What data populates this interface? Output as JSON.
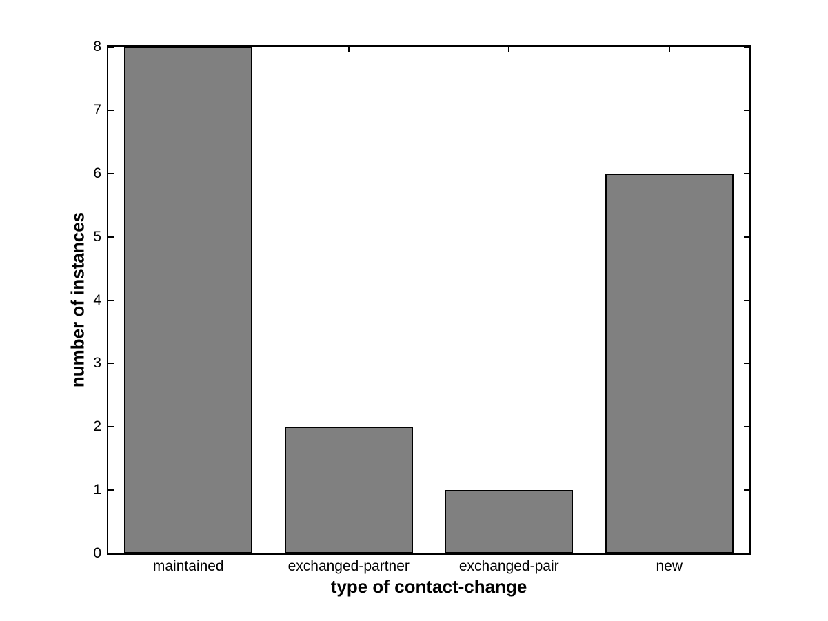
{
  "chart_data": {
    "type": "bar",
    "categories": [
      "maintained",
      "exchanged-partner",
      "exchanged-pair",
      "new"
    ],
    "values": [
      8,
      2,
      1,
      6
    ],
    "title": "",
    "xlabel": "type of contact-change",
    "ylabel": "number of instances",
    "ylim": [
      0,
      8
    ],
    "yticks": [
      0,
      1,
      2,
      3,
      4,
      5,
      6,
      7,
      8
    ],
    "bar_width_fraction": 0.8,
    "bar_color": "#808080",
    "bar_edge_color": "#000000",
    "axis_color": "#000000",
    "background_color": "#ffffff",
    "grid": false,
    "legend": null,
    "tick_style": "inward ticks mirrored on all four sides (MATLAB box on)"
  }
}
